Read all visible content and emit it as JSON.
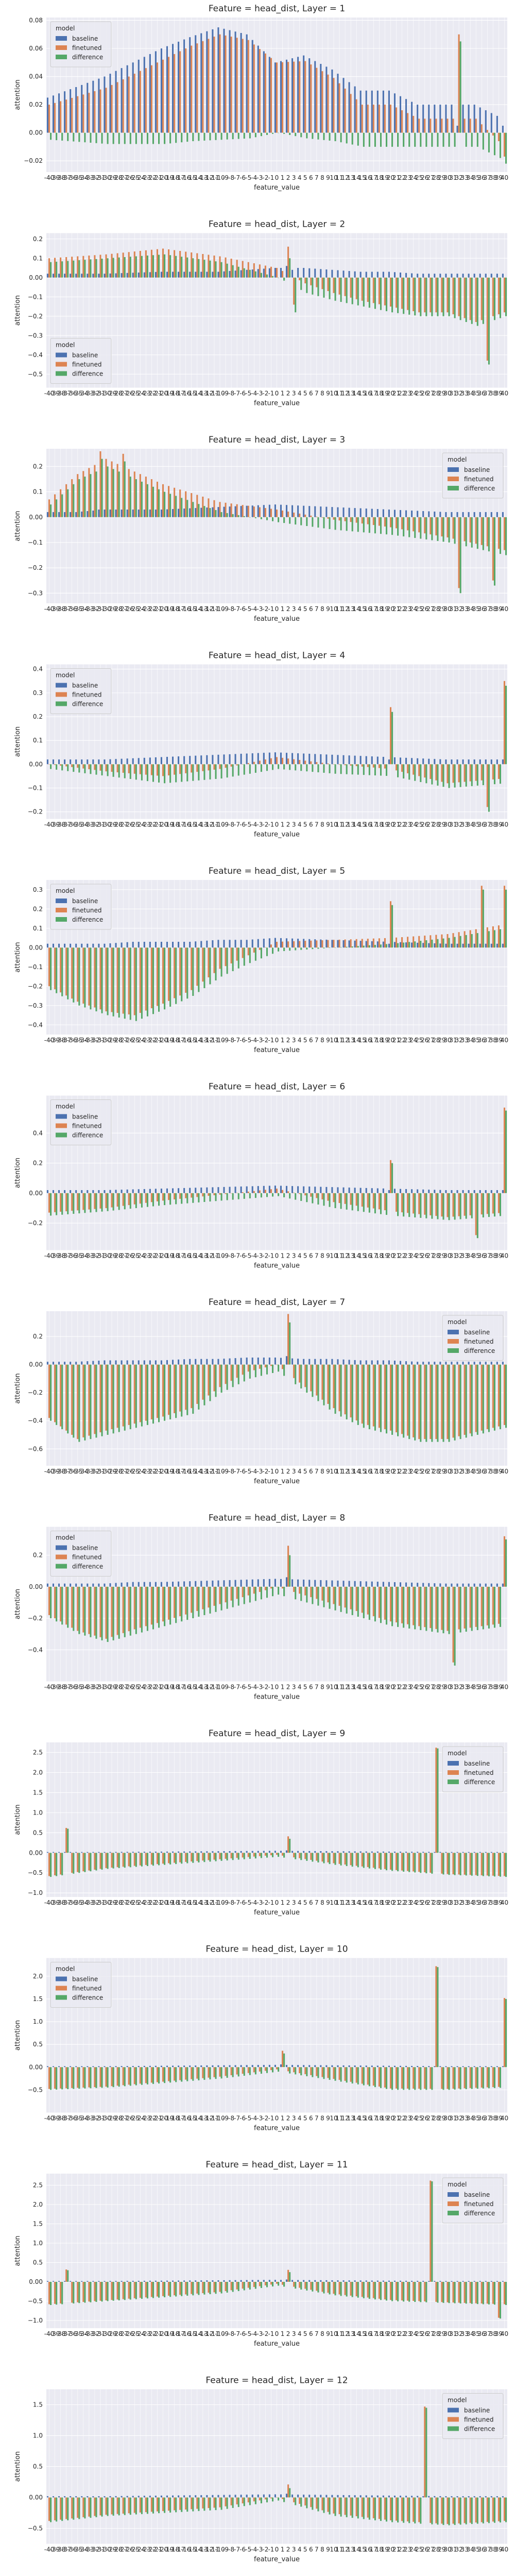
{
  "chart_data": {
    "type": "bar",
    "feature_values": [
      "-40",
      "-39",
      "-38",
      "-37",
      "-36",
      "-35",
      "-34",
      "-33",
      "-32",
      "-31",
      "-30",
      "-29",
      "-28",
      "-27",
      "-26",
      "-25",
      "-24",
      "-23",
      "-22",
      "-21",
      "-20",
      "-19",
      "-18",
      "-17",
      "-16",
      "-15",
      "-14",
      "-13",
      "-12",
      "-11",
      "-10",
      "-9",
      "-8",
      "-7",
      "-6",
      "-5",
      "-4",
      "-3",
      "-2",
      "-1",
      "0",
      "1",
      "2",
      "3",
      "4",
      "5",
      "6",
      "7",
      "8",
      "9",
      "10",
      "11",
      "12",
      "13",
      "14",
      "15",
      "16",
      "17",
      "18",
      "19",
      "20",
      "21",
      "22",
      "23",
      "24",
      "25",
      "26",
      "27",
      "28",
      "29",
      "30",
      "31",
      "32",
      "33",
      "34",
      "35",
      "36",
      "37",
      "38",
      "39",
      "40"
    ],
    "legend_title": "model",
    "series_names": [
      "baseline",
      "finetuned",
      "difference"
    ],
    "colors": {
      "baseline": "#4c72b0",
      "finetuned": "#dd8452",
      "difference": "#55a868"
    },
    "xlabel": "feature_value",
    "ylabel": "attention",
    "panels": [
      {
        "title": "Feature = head_dist, Layer = 1",
        "legend": "top-left",
        "ylim": [
          -0.028,
          0.082
        ],
        "yticks": [
          -0.02,
          0.0,
          0.02,
          0.04,
          0.06,
          0.08
        ],
        "anchors": [
          [
            0,
            0.025,
            -0.005
          ],
          [
            10,
            0.04,
            -0.008
          ],
          [
            20,
            0.06,
            -0.008
          ],
          [
            25,
            0.068,
            -0.006
          ],
          [
            30,
            0.075,
            -0.005
          ],
          [
            35,
            0.07,
            -0.004
          ],
          [
            40,
            0.05,
            0.0
          ],
          [
            45,
            0.055,
            -0.004
          ],
          [
            50,
            0.045,
            -0.006
          ],
          [
            55,
            0.03,
            -0.01
          ],
          [
            60,
            0.03,
            -0.01
          ],
          [
            65,
            0.02,
            -0.01
          ],
          [
            70,
            0.02,
            -0.01
          ],
          [
            75,
            0.02,
            -0.01
          ],
          [
            80,
            0.01,
            -0.02
          ]
        ],
        "spikes": [
          [
            72,
            0.005,
            0.065
          ],
          [
            80,
            0.005,
            -0.022
          ]
        ]
      },
      {
        "title": "Feature = head_dist, Layer = 2",
        "legend": "bottom-left",
        "ylim": [
          -0.57,
          0.23
        ],
        "yticks": [
          -0.5,
          -0.4,
          -0.3,
          -0.2,
          -0.1,
          0.0,
          0.1,
          0.2
        ],
        "anchors": [
          [
            0,
            0.02,
            0.08
          ],
          [
            10,
            0.02,
            0.1
          ],
          [
            20,
            0.03,
            0.12
          ],
          [
            30,
            0.03,
            0.08
          ],
          [
            40,
            0.05,
            0.0
          ],
          [
            45,
            0.05,
            -0.08
          ],
          [
            50,
            0.04,
            -0.12
          ],
          [
            55,
            0.03,
            -0.15
          ],
          [
            60,
            0.03,
            -0.18
          ],
          [
            65,
            0.02,
            -0.2
          ],
          [
            70,
            0.02,
            -0.2
          ],
          [
            75,
            0.02,
            -0.25
          ],
          [
            80,
            0.02,
            -0.2
          ]
        ],
        "spikes": [
          [
            77,
            0.02,
            -0.45
          ],
          [
            42,
            0.06,
            0.1
          ],
          [
            43,
            0.04,
            -0.18
          ]
        ]
      },
      {
        "title": "Feature = head_dist, Layer = 3",
        "legend": "top-right",
        "ylim": [
          -0.34,
          0.27
        ],
        "yticks": [
          -0.3,
          -0.2,
          -0.1,
          0.0,
          0.1,
          0.2
        ],
        "anchors": [
          [
            0,
            0.02,
            0.05
          ],
          [
            5,
            0.02,
            0.15
          ],
          [
            10,
            0.03,
            0.2
          ],
          [
            15,
            0.03,
            0.15
          ],
          [
            20,
            0.03,
            0.1
          ],
          [
            30,
            0.04,
            0.02
          ],
          [
            40,
            0.05,
            -0.02
          ],
          [
            50,
            0.04,
            -0.05
          ],
          [
            60,
            0.03,
            -0.07
          ],
          [
            70,
            0.02,
            -0.1
          ],
          [
            80,
            0.02,
            -0.15
          ]
        ],
        "spikes": [
          [
            72,
            0.02,
            -0.3
          ],
          [
            78,
            0.02,
            -0.27
          ],
          [
            9,
            0.03,
            0.23
          ],
          [
            13,
            0.03,
            0.22
          ]
        ]
      },
      {
        "title": "Feature = head_dist, Layer = 4",
        "legend": "top-left",
        "ylim": [
          -0.23,
          0.42
        ],
        "yticks": [
          -0.2,
          -0.1,
          0.0,
          0.1,
          0.2,
          0.3,
          0.4
        ],
        "anchors": [
          [
            0,
            0.02,
            -0.02
          ],
          [
            10,
            0.02,
            -0.05
          ],
          [
            20,
            0.03,
            -0.08
          ],
          [
            30,
            0.04,
            -0.06
          ],
          [
            40,
            0.05,
            -0.02
          ],
          [
            50,
            0.04,
            -0.04
          ],
          [
            60,
            0.03,
            -0.05
          ],
          [
            70,
            0.02,
            -0.1
          ],
          [
            80,
            0.02,
            -0.08
          ]
        ],
        "spikes": [
          [
            60,
            0.02,
            0.22
          ],
          [
            77,
            0.02,
            -0.2
          ],
          [
            80,
            0.02,
            0.33
          ]
        ]
      },
      {
        "title": "Feature = head_dist, Layer = 5",
        "legend": "top-left",
        "ylim": [
          -0.45,
          0.35
        ],
        "yticks": [
          -0.4,
          -0.3,
          -0.2,
          -0.1,
          0.0,
          0.1,
          0.2,
          0.3
        ],
        "anchors": [
          [
            0,
            0.02,
            -0.22
          ],
          [
            5,
            0.02,
            -0.3
          ],
          [
            10,
            0.02,
            -0.35
          ],
          [
            15,
            0.03,
            -0.38
          ],
          [
            20,
            0.03,
            -0.32
          ],
          [
            25,
            0.03,
            -0.25
          ],
          [
            30,
            0.04,
            -0.15
          ],
          [
            35,
            0.04,
            -0.08
          ],
          [
            40,
            0.05,
            -0.02
          ],
          [
            50,
            0.04,
            0.0
          ],
          [
            60,
            0.03,
            0.02
          ],
          [
            70,
            0.02,
            0.05
          ],
          [
            80,
            0.02,
            0.1
          ]
        ],
        "spikes": [
          [
            60,
            0.02,
            0.22
          ],
          [
            76,
            0.02,
            0.3
          ],
          [
            80,
            0.02,
            0.3
          ]
        ]
      },
      {
        "title": "Feature = head_dist, Layer = 6",
        "legend": "top-left",
        "ylim": [
          -0.38,
          0.65
        ],
        "yticks": [
          -0.2,
          0.0,
          0.2,
          0.4
        ],
        "anchors": [
          [
            0,
            0.02,
            -0.15
          ],
          [
            10,
            0.02,
            -0.12
          ],
          [
            20,
            0.03,
            -0.08
          ],
          [
            30,
            0.04,
            -0.05
          ],
          [
            40,
            0.05,
            -0.02
          ],
          [
            50,
            0.04,
            -0.1
          ],
          [
            60,
            0.03,
            -0.15
          ],
          [
            70,
            0.02,
            -0.18
          ],
          [
            80,
            0.02,
            -0.15
          ]
        ],
        "spikes": [
          [
            60,
            0.02,
            0.2
          ],
          [
            75,
            0.02,
            -0.3
          ],
          [
            80,
            0.02,
            0.55
          ]
        ]
      },
      {
        "title": "Feature = head_dist, Layer = 7",
        "legend": "top-right",
        "ylim": [
          -0.72,
          0.38
        ],
        "yticks": [
          -0.6,
          -0.4,
          -0.2,
          0.0,
          0.2
        ],
        "anchors": [
          [
            0,
            0.02,
            -0.4
          ],
          [
            5,
            0.02,
            -0.55
          ],
          [
            10,
            0.03,
            -0.5
          ],
          [
            15,
            0.03,
            -0.45
          ],
          [
            20,
            0.03,
            -0.4
          ],
          [
            25,
            0.04,
            -0.35
          ],
          [
            30,
            0.04,
            -0.2
          ],
          [
            35,
            0.05,
            -0.1
          ],
          [
            40,
            0.05,
            -0.05
          ],
          [
            45,
            0.04,
            -0.2
          ],
          [
            50,
            0.04,
            -0.35
          ],
          [
            55,
            0.03,
            -0.45
          ],
          [
            60,
            0.03,
            -0.5
          ],
          [
            65,
            0.02,
            -0.55
          ],
          [
            70,
            0.02,
            -0.55
          ],
          [
            75,
            0.02,
            -0.5
          ],
          [
            80,
            0.02,
            -0.45
          ]
        ],
        "spikes": [
          [
            42,
            0.06,
            0.3
          ]
        ]
      },
      {
        "title": "Feature = head_dist, Layer = 8",
        "legend": "top-left",
        "ylim": [
          -0.6,
          0.38
        ],
        "yticks": [
          -0.4,
          -0.2,
          0.0,
          0.2
        ],
        "anchors": [
          [
            0,
            0.02,
            -0.2
          ],
          [
            5,
            0.02,
            -0.3
          ],
          [
            10,
            0.02,
            -0.35
          ],
          [
            15,
            0.03,
            -0.3
          ],
          [
            20,
            0.03,
            -0.25
          ],
          [
            30,
            0.04,
            -0.15
          ],
          [
            40,
            0.05,
            -0.05
          ],
          [
            50,
            0.04,
            -0.15
          ],
          [
            60,
            0.03,
            -0.25
          ],
          [
            70,
            0.02,
            -0.3
          ],
          [
            80,
            0.02,
            -0.25
          ]
        ],
        "spikes": [
          [
            42,
            0.06,
            0.2
          ],
          [
            71,
            0.02,
            -0.5
          ],
          [
            80,
            0.02,
            0.3
          ]
        ]
      },
      {
        "title": "Feature = head_dist, Layer = 9",
        "legend": "top-right",
        "ylim": [
          -1.1,
          2.75
        ],
        "yticks": [
          -1.0,
          -0.5,
          0.0,
          0.5,
          1.0,
          1.5,
          2.0,
          2.5
        ],
        "anchors": [
          [
            0,
            0.02,
            -0.6
          ],
          [
            10,
            0.02,
            -0.4
          ],
          [
            20,
            0.03,
            -0.3
          ],
          [
            30,
            0.04,
            -0.2
          ],
          [
            40,
            0.05,
            -0.1
          ],
          [
            50,
            0.04,
            -0.3
          ],
          [
            60,
            0.03,
            -0.45
          ],
          [
            70,
            0.02,
            -0.55
          ],
          [
            80,
            0.02,
            -0.6
          ]
        ],
        "spikes": [
          [
            3,
            0.02,
            0.6
          ],
          [
            42,
            0.06,
            0.35
          ],
          [
            68,
            0.02,
            2.6
          ]
        ]
      },
      {
        "title": "Feature = head_dist, Layer = 10",
        "legend": "top-left",
        "ylim": [
          -1.0,
          2.4
        ],
        "yticks": [
          -0.5,
          0.0,
          0.5,
          1.0,
          1.5,
          2.0
        ],
        "anchors": [
          [
            0,
            0.02,
            -0.5
          ],
          [
            10,
            0.02,
            -0.45
          ],
          [
            20,
            0.03,
            -0.35
          ],
          [
            30,
            0.04,
            -0.25
          ],
          [
            40,
            0.05,
            -0.1
          ],
          [
            50,
            0.04,
            -0.3
          ],
          [
            60,
            0.03,
            -0.5
          ],
          [
            70,
            0.02,
            -0.5
          ],
          [
            80,
            0.02,
            -0.45
          ]
        ],
        "spikes": [
          [
            41,
            0.06,
            0.3
          ],
          [
            68,
            0.02,
            2.2
          ],
          [
            80,
            0.02,
            1.5
          ]
        ]
      },
      {
        "title": "Feature = head_dist, Layer = 11",
        "legend": "top-right",
        "ylim": [
          -1.2,
          2.8
        ],
        "yticks": [
          -1.0,
          -0.5,
          0.0,
          0.5,
          1.0,
          1.5,
          2.0,
          2.5
        ],
        "anchors": [
          [
            0,
            0.02,
            -0.6
          ],
          [
            10,
            0.02,
            -0.5
          ],
          [
            20,
            0.03,
            -0.4
          ],
          [
            30,
            0.04,
            -0.3
          ],
          [
            40,
            0.05,
            -0.1
          ],
          [
            50,
            0.04,
            -0.35
          ],
          [
            60,
            0.03,
            -0.5
          ],
          [
            70,
            0.02,
            -0.55
          ],
          [
            80,
            0.02,
            -0.6
          ]
        ],
        "spikes": [
          [
            3,
            0.02,
            0.3
          ],
          [
            42,
            0.06,
            0.25
          ],
          [
            67,
            0.02,
            2.6
          ],
          [
            79,
            0.02,
            -0.95
          ]
        ]
      },
      {
        "title": "Feature = head_dist, Layer = 12",
        "legend": "top-right",
        "ylim": [
          -0.75,
          1.75
        ],
        "yticks": [
          -0.5,
          0.0,
          0.5,
          1.0,
          1.5
        ],
        "anchors": [
          [
            0,
            0.02,
            -0.4
          ],
          [
            10,
            0.02,
            -0.3
          ],
          [
            20,
            0.03,
            -0.25
          ],
          [
            30,
            0.04,
            -0.2
          ],
          [
            40,
            0.05,
            -0.05
          ],
          [
            50,
            0.04,
            -0.3
          ],
          [
            60,
            0.03,
            -0.4
          ],
          [
            70,
            0.02,
            -0.45
          ],
          [
            80,
            0.02,
            -0.4
          ]
        ],
        "spikes": [
          [
            42,
            0.06,
            0.15
          ],
          [
            66,
            0.02,
            1.45
          ]
        ]
      }
    ]
  }
}
